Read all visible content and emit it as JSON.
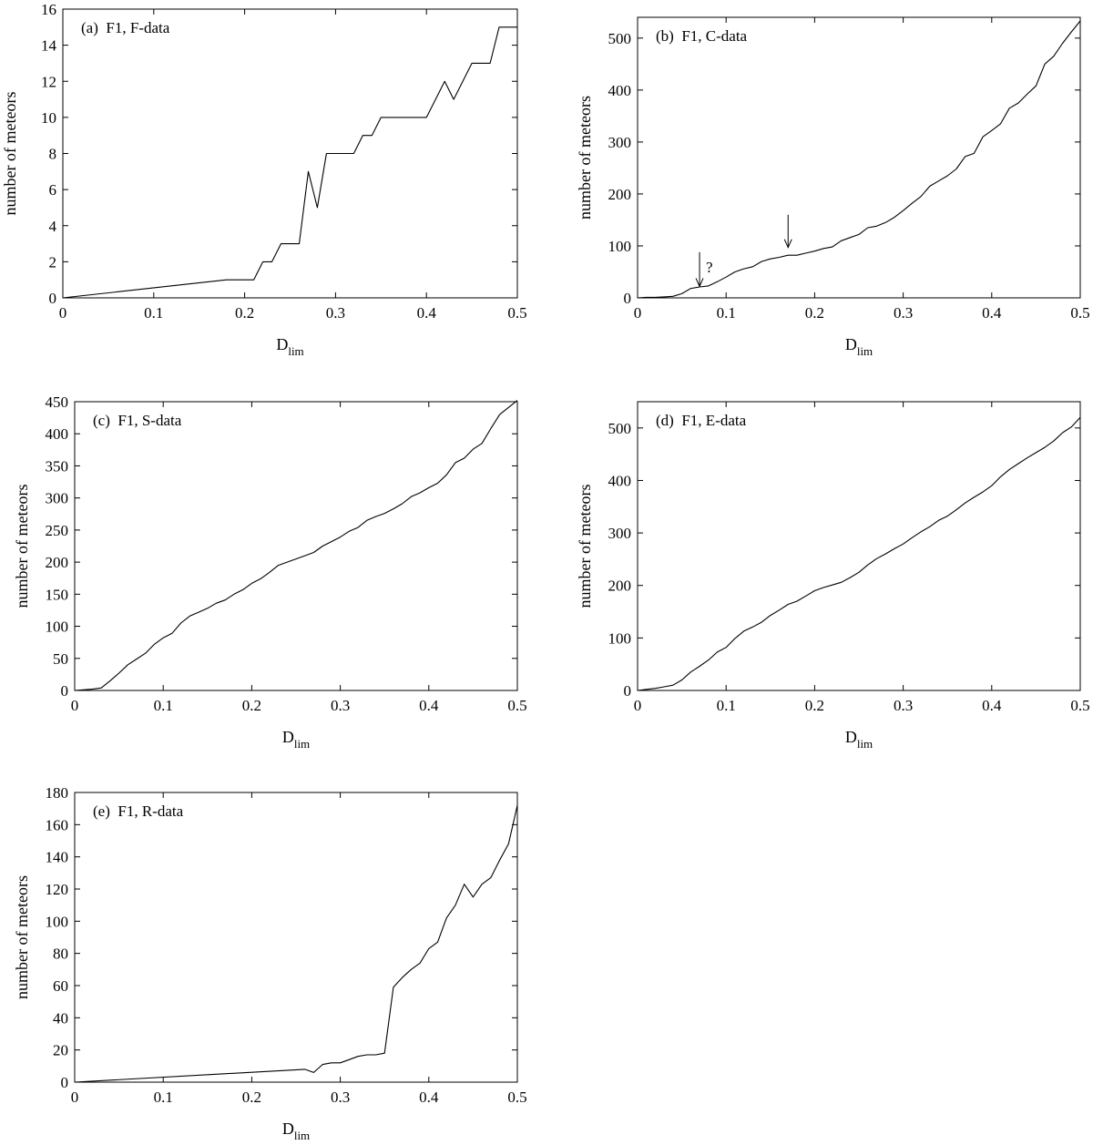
{
  "chart_data": [
    {
      "type": "line",
      "panel_label": "(a)  F1, F-data",
      "xlabel_main": "D",
      "xlabel_sub": "lim",
      "ylabel": "number of meteors",
      "xlim": [
        0,
        0.5
      ],
      "ylim": [
        0,
        16
      ],
      "xticks": [
        0,
        0.1,
        0.2,
        0.3,
        0.4,
        0.5
      ],
      "xtick_labels": [
        "0",
        "0.1",
        "0.2",
        "0.3",
        "0.4",
        "0.5"
      ],
      "yticks": [
        0,
        2,
        4,
        6,
        8,
        10,
        12,
        14,
        16
      ],
      "ytick_labels": [
        "0",
        "2",
        "4",
        "6",
        "8",
        "10",
        "12",
        "14",
        "16"
      ],
      "annotations": [],
      "series": [
        {
          "name": "F1, F-data",
          "x": [
            0,
            0.18,
            0.21,
            0.22,
            0.23,
            0.24,
            0.25,
            0.26,
            0.27,
            0.28,
            0.29,
            0.3,
            0.31,
            0.32,
            0.33,
            0.34,
            0.35,
            0.36,
            0.37,
            0.38,
            0.39,
            0.4,
            0.41,
            0.42,
            0.43,
            0.44,
            0.45,
            0.46,
            0.47,
            0.48,
            0.49,
            0.5
          ],
          "y": [
            0,
            1,
            1,
            2,
            2,
            3,
            3,
            3,
            7,
            5,
            8,
            8,
            8,
            8,
            9,
            9,
            10,
            10,
            10,
            10,
            10,
            10,
            11,
            12,
            11,
            12,
            13,
            13,
            13,
            15,
            15,
            15
          ]
        }
      ]
    },
    {
      "type": "line",
      "panel_label": "(b)  F1, C-data",
      "xlabel_main": "D",
      "xlabel_sub": "lim",
      "ylabel": "number of meteors",
      "xlim": [
        0,
        0.5
      ],
      "ylim": [
        0,
        540
      ],
      "xticks": [
        0,
        0.1,
        0.2,
        0.3,
        0.4,
        0.5
      ],
      "xtick_labels": [
        "0",
        "0.1",
        "0.2",
        "0.3",
        "0.4",
        "0.5"
      ],
      "yticks": [
        0,
        100,
        200,
        300,
        400,
        500
      ],
      "ytick_labels": [
        "0",
        "100",
        "200",
        "300",
        "400",
        "500"
      ],
      "annotations": [
        {
          "type": "arrow",
          "x": 0.07,
          "y_from": 88,
          "y_to": 22,
          "label": "?"
        },
        {
          "type": "arrow",
          "x": 0.17,
          "y_from": 160,
          "y_to": 97,
          "label": ""
        }
      ],
      "series": [
        {
          "name": "F1, C-data",
          "x": [
            0,
            0.01,
            0.02,
            0.03,
            0.04,
            0.05,
            0.06,
            0.07,
            0.08,
            0.09,
            0.1,
            0.11,
            0.12,
            0.13,
            0.14,
            0.15,
            0.16,
            0.17,
            0.18,
            0.19,
            0.2,
            0.21,
            0.22,
            0.23,
            0.24,
            0.25,
            0.26,
            0.27,
            0.28,
            0.29,
            0.3,
            0.31,
            0.32,
            0.33,
            0.34,
            0.35,
            0.36,
            0.37,
            0.38,
            0.39,
            0.4,
            0.41,
            0.42,
            0.43,
            0.44,
            0.45,
            0.46,
            0.47,
            0.48,
            0.49,
            0.5
          ],
          "y": [
            0,
            1,
            1,
            2,
            3,
            8,
            18,
            21,
            23,
            31,
            40,
            50,
            56,
            60,
            70,
            75,
            78,
            82,
            82,
            86,
            90,
            95,
            98,
            110,
            116,
            122,
            135,
            138,
            145,
            155,
            168,
            182,
            195,
            215,
            225,
            235,
            248,
            272,
            278,
            310,
            322,
            335,
            365,
            375,
            392,
            408,
            450,
            465,
            490,
            512,
            533
          ]
        }
      ]
    },
    {
      "type": "line",
      "panel_label": "(c)  F1, S-data",
      "xlabel_main": "D",
      "xlabel_sub": "lim",
      "ylabel": "number of meteors",
      "xlim": [
        0,
        0.5
      ],
      "ylim": [
        0,
        450
      ],
      "xticks": [
        0,
        0.1,
        0.2,
        0.3,
        0.4,
        0.5
      ],
      "xtick_labels": [
        "0",
        "0.1",
        "0.2",
        "0.3",
        "0.4",
        "0.5"
      ],
      "yticks": [
        0,
        50,
        100,
        150,
        200,
        250,
        300,
        350,
        400,
        450
      ],
      "ytick_labels": [
        "0",
        "50",
        "100",
        "150",
        "200",
        "250",
        "300",
        "350",
        "400",
        "450"
      ],
      "annotations": [],
      "series": [
        {
          "name": "F1, S-data",
          "x": [
            0,
            0.01,
            0.02,
            0.03,
            0.04,
            0.05,
            0.06,
            0.07,
            0.08,
            0.09,
            0.1,
            0.11,
            0.12,
            0.13,
            0.14,
            0.15,
            0.16,
            0.17,
            0.18,
            0.19,
            0.2,
            0.21,
            0.22,
            0.23,
            0.24,
            0.25,
            0.26,
            0.27,
            0.28,
            0.29,
            0.3,
            0.31,
            0.32,
            0.33,
            0.34,
            0.35,
            0.36,
            0.37,
            0.38,
            0.39,
            0.4,
            0.41,
            0.42,
            0.43,
            0.44,
            0.45,
            0.46,
            0.47,
            0.48,
            0.49,
            0.5
          ],
          "y": [
            0,
            1,
            2,
            4,
            15,
            27,
            40,
            49,
            58,
            72,
            82,
            89,
            105,
            116,
            122,
            128,
            136,
            141,
            150,
            157,
            167,
            174,
            184,
            195,
            200,
            205,
            210,
            215,
            225,
            232,
            239,
            248,
            254,
            265,
            271,
            276,
            283,
            291,
            302,
            308,
            316,
            323,
            336,
            355,
            362,
            376,
            385,
            408,
            430,
            441,
            452
          ]
        }
      ]
    },
    {
      "type": "line",
      "panel_label": "(d)  F1, E-data",
      "xlabel_main": "D",
      "xlabel_sub": "lim",
      "ylabel": "number of meteors",
      "xlim": [
        0,
        0.5
      ],
      "ylim": [
        0,
        550
      ],
      "xticks": [
        0,
        0.1,
        0.2,
        0.3,
        0.4,
        0.5
      ],
      "xtick_labels": [
        "0",
        "0.1",
        "0.2",
        "0.3",
        "0.4",
        "0.5"
      ],
      "yticks": [
        0,
        100,
        200,
        300,
        400,
        500
      ],
      "ytick_labels": [
        "0",
        "100",
        "200",
        "300",
        "400",
        "500"
      ],
      "annotations": [],
      "series": [
        {
          "name": "F1, E-data",
          "x": [
            0,
            0.01,
            0.02,
            0.03,
            0.04,
            0.05,
            0.06,
            0.07,
            0.08,
            0.09,
            0.1,
            0.11,
            0.12,
            0.13,
            0.14,
            0.15,
            0.16,
            0.17,
            0.18,
            0.19,
            0.2,
            0.21,
            0.22,
            0.23,
            0.24,
            0.25,
            0.26,
            0.27,
            0.28,
            0.29,
            0.3,
            0.31,
            0.32,
            0.33,
            0.34,
            0.35,
            0.36,
            0.37,
            0.38,
            0.39,
            0.4,
            0.41,
            0.42,
            0.43,
            0.44,
            0.45,
            0.46,
            0.47,
            0.48,
            0.49,
            0.5
          ],
          "y": [
            0,
            2,
            4,
            7,
            10,
            20,
            35,
            46,
            58,
            73,
            82,
            99,
            113,
            121,
            130,
            143,
            153,
            164,
            170,
            180,
            190,
            196,
            201,
            206,
            215,
            225,
            239,
            251,
            260,
            270,
            279,
            291,
            302,
            312,
            324,
            332,
            344,
            357,
            368,
            378,
            390,
            407,
            421,
            432,
            443,
            453,
            463,
            475,
            491,
            502,
            520
          ]
        }
      ]
    },
    {
      "type": "line",
      "panel_label": "(e)  F1, R-data",
      "xlabel_main": "D",
      "xlabel_sub": "lim",
      "ylabel": "number of meteors",
      "xlim": [
        0,
        0.5
      ],
      "ylim": [
        0,
        180
      ],
      "xticks": [
        0,
        0.1,
        0.2,
        0.3,
        0.4,
        0.5
      ],
      "xtick_labels": [
        "0",
        "0.1",
        "0.2",
        "0.3",
        "0.4",
        "0.5"
      ],
      "yticks": [
        0,
        20,
        40,
        60,
        80,
        100,
        120,
        140,
        160,
        180
      ],
      "ytick_labels": [
        "0",
        "20",
        "40",
        "60",
        "80",
        "100",
        "120",
        "140",
        "160",
        "180"
      ],
      "annotations": [],
      "series": [
        {
          "name": "F1, R-data",
          "x": [
            0,
            0.26,
            0.27,
            0.28,
            0.29,
            0.3,
            0.31,
            0.32,
            0.33,
            0.34,
            0.35,
            0.36,
            0.37,
            0.38,
            0.39,
            0.4,
            0.41,
            0.42,
            0.43,
            0.44,
            0.45,
            0.46,
            0.47,
            0.48,
            0.49,
            0.5
          ],
          "y": [
            0,
            8,
            6,
            11,
            12,
            12,
            14,
            16,
            17,
            17,
            18,
            59,
            65,
            70,
            74,
            83,
            87,
            102,
            110,
            123,
            115,
            123,
            127,
            138,
            148,
            172
          ]
        }
      ]
    }
  ]
}
